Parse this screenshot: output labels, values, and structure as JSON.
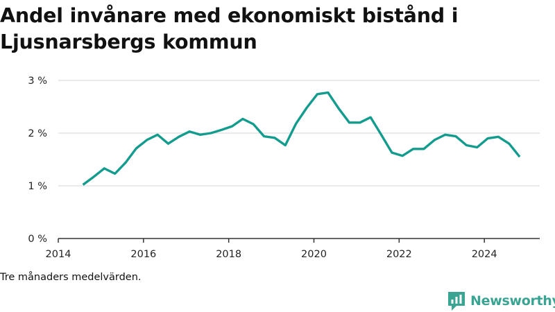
{
  "title": "Andel invånare med ekonomiskt bistånd i Ljusnarsbergs kommun",
  "note": "Tre månaders medelvärden.",
  "brand": {
    "name": "Newsworthy",
    "icon": "newsworthy-logo-icon",
    "color": "#3aa493"
  },
  "chart_data": {
    "type": "line",
    "title": "Andel invånare med ekonomiskt bistånd i Ljusnarsbergs kommun",
    "xlabel": "",
    "ylabel": "",
    "xlim": [
      2014,
      2025.3
    ],
    "ylim": [
      0,
      3
    ],
    "x_ticks": [
      2014,
      2016,
      2018,
      2020,
      2022,
      2024
    ],
    "y_ticks": [
      {
        "value": 0,
        "label": "0 %"
      },
      {
        "value": 1,
        "label": "1 %"
      },
      {
        "value": 2,
        "label": "2 %"
      },
      {
        "value": 3,
        "label": "3 %"
      }
    ],
    "grid": "horizontal",
    "line_color": "#139c8e",
    "series": [
      {
        "name": "",
        "x": [
          2014.58,
          2014.83,
          2015.08,
          2015.33,
          2015.58,
          2015.83,
          2016.08,
          2016.33,
          2016.58,
          2016.83,
          2017.08,
          2017.33,
          2017.58,
          2017.83,
          2018.08,
          2018.33,
          2018.58,
          2018.83,
          2019.08,
          2019.33,
          2019.58,
          2019.83,
          2020.08,
          2020.33,
          2020.58,
          2020.83,
          2021.08,
          2021.33,
          2021.58,
          2021.83,
          2022.08,
          2022.33,
          2022.58,
          2022.83,
          2023.08,
          2023.33,
          2023.58,
          2023.83,
          2024.08,
          2024.33,
          2024.58,
          2024.83
        ],
        "values": [
          1.02,
          1.17,
          1.33,
          1.23,
          1.44,
          1.71,
          1.87,
          1.97,
          1.8,
          1.93,
          2.03,
          1.97,
          2.0,
          2.06,
          2.13,
          2.27,
          2.17,
          1.94,
          1.91,
          1.77,
          2.18,
          2.48,
          2.74,
          2.77,
          2.47,
          2.2,
          2.2,
          2.3,
          1.97,
          1.63,
          1.57,
          1.7,
          1.7,
          1.87,
          1.97,
          1.94,
          1.77,
          1.73,
          1.9,
          1.93,
          1.8,
          1.55
        ]
      }
    ]
  }
}
